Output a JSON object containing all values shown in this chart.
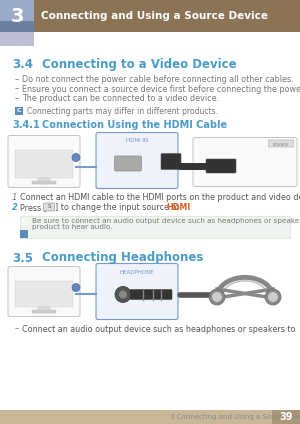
{
  "page_bg": "#ffffff",
  "header_bg": "#8B7355",
  "header_num_bg_top": "#9BAAC8",
  "header_num_bg_bot": "#6B7FA0",
  "header_number": "3",
  "header_title": "Connecting and Using a Source Device",
  "section_color": "#4A9CC7",
  "section_34_num": "3.4",
  "section_34_title": "Connecting to a Video Device",
  "section_341_num": "3.4.1",
  "section_341_title": "Connection Using the HDMI Cable",
  "section_35_num": "3.5",
  "section_35_title": "Connecting Headphones",
  "bullet_char": "›",
  "bullet_items_34": [
    "Do not connect the power cable before connecting all other cables.",
    "Ensure you connect a source device first before connecting the power cable.",
    "The product can be connected to a video device."
  ],
  "note_icon_color": "#5B8DB8",
  "note_text_34": "Connecting parts may differ in different products.",
  "step1": "Connect an HDMI cable to the HDMI ports on the product and video device.",
  "step2_pre": "Press [",
  "step2_mid": "SOURCE",
  "step2_post": "] to change the input source to ",
  "step2_hdmi": "HDMI",
  "hdmi_color": "#E06020",
  "note_text_341": "Be sure to connect an audio output device such as headphones or speakers to      on the\nproduct to hear audio.",
  "hp_bullet": "Connect an audio output device such as headphones or speakers to       on the product.",
  "footer_text": "3 Connecting and Using a Source Device",
  "footer_page": "39",
  "footer_bg": "#C8B898",
  "footer_num_bg": "#A89878",
  "text_color": "#777777",
  "text_dark": "#555555",
  "device_border": "#AAAACC",
  "device_fill": "#F0F2F8",
  "monitor_border": "#BBBBBB",
  "monitor_fill": "#F5F5F5",
  "cable_color": "#7799CC",
  "connector_color": "#445566"
}
